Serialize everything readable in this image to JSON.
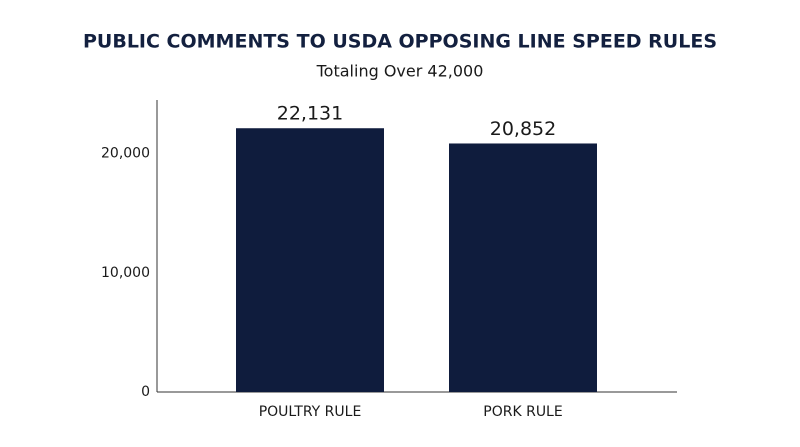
{
  "chart_data": {
    "type": "bar",
    "title": "PUBLIC COMMENTS TO USDA OPPOSING LINE SPEED RULES",
    "subtitle": "Totaling Over 42,000",
    "categories": [
      "POULTRY RULE",
      "PORK RULE"
    ],
    "values": [
      22131,
      20852
    ],
    "value_labels": [
      "22,131",
      "20,852"
    ],
    "color": "#0f1c3d",
    "ylim": [
      0,
      24500
    ],
    "yticks": [
      0,
      {
        "value": 10000,
        "label": "10,000"
      },
      {
        "value": 20000,
        "label": "20,000"
      }
    ],
    "grid": false
  }
}
